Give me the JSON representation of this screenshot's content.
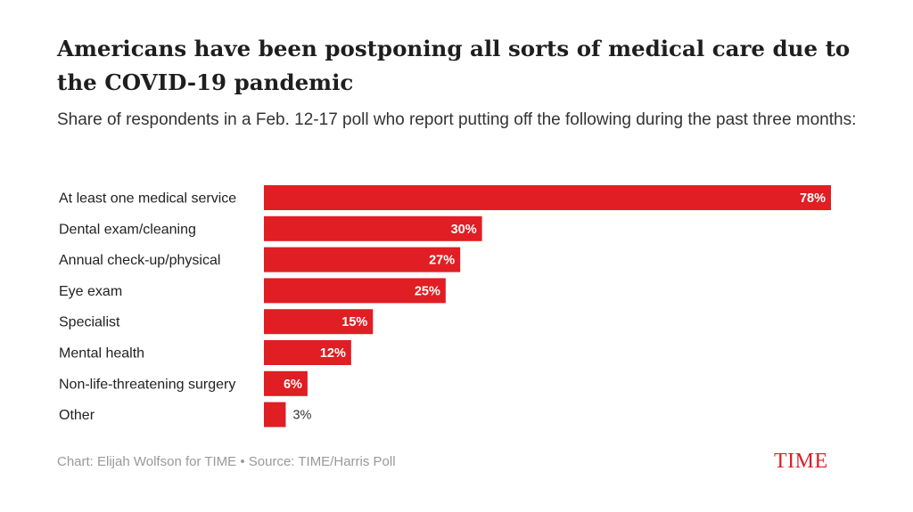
{
  "header": {
    "title": "Americans have been postponing all sorts of medical care due to the COVID-19 pandemic",
    "subtitle": "Share of respondents in a Feb. 12-17 poll who report putting off the following during the past three months:"
  },
  "footer": {
    "credit": "Chart: Elijah Wolfson for TIME • Source: TIME/Harris Poll",
    "brand": "TIME"
  },
  "colors": {
    "bar": "#e01e23",
    "brand": "#e01e23"
  },
  "chart_data": {
    "type": "bar",
    "orientation": "horizontal",
    "title": "Americans have been postponing all sorts of medical care due to the COVID-19 pandemic",
    "subtitle": "Share of respondents in a Feb. 12-17 poll who report putting off the following during the past three months:",
    "unit": "%",
    "categories": [
      "At least one medical service",
      "Dental exam/cleaning",
      "Annual check-up/physical",
      "Eye exam",
      "Specialist",
      "Mental health",
      "Non-life-threatening surgery",
      "Other"
    ],
    "values": [
      78,
      30,
      27,
      25,
      15,
      12,
      6,
      3
    ],
    "value_labels": [
      "78%",
      "30%",
      "27%",
      "25%",
      "15%",
      "12%",
      "6%",
      "3%"
    ],
    "xlim": [
      0,
      78
    ],
    "grid": false,
    "legend": "none"
  }
}
